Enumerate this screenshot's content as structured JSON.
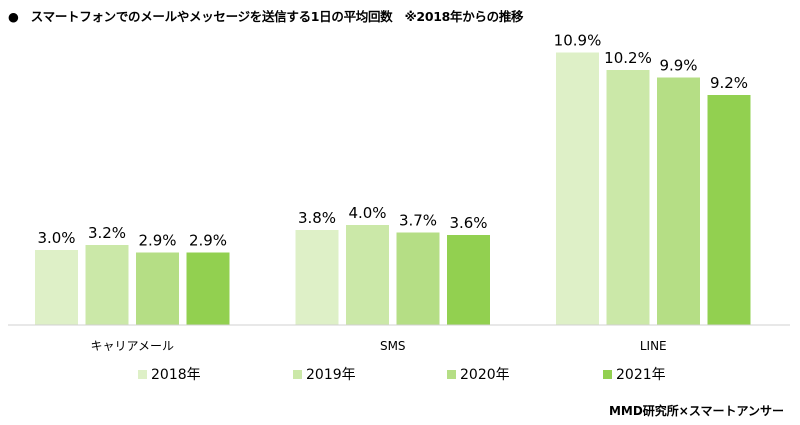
{
  "title": "●　スマートフォンでのメールやメッセージを送信する1日の平均回数　※2018年からの推移",
  "source": "MMD研究所×スマートアンサー",
  "chart_data": {
    "type": "bar",
    "title": "スマートフォンでのメールやメッセージを送信する1日の平均回数　※2018年からの推移",
    "categories": [
      "キャリアメール",
      "SMS",
      "LINE"
    ],
    "series": [
      {
        "name": "2018年",
        "color": "#def0c7",
        "values": [
          3.0,
          3.8,
          10.9
        ],
        "labels": [
          "3.0%",
          "3.8%",
          "10.9%"
        ]
      },
      {
        "name": "2019年",
        "color": "#cbe8a8",
        "values": [
          3.2,
          4.0,
          10.2
        ],
        "labels": [
          "3.2%",
          "4.0%",
          "10.2%"
        ]
      },
      {
        "name": "2020年",
        "color": "#b5de85",
        "values": [
          2.9,
          3.7,
          9.9
        ],
        "labels": [
          "2.9%",
          "3.7%",
          "9.9%"
        ]
      },
      {
        "name": "2021年",
        "color": "#92d050",
        "values": [
          2.9,
          3.6,
          9.2
        ],
        "labels": [
          "2.9%",
          "3.6%",
          "9.2%"
        ]
      }
    ],
    "ylim": [
      0,
      13
    ],
    "grid": false,
    "legend": "bottom"
  }
}
